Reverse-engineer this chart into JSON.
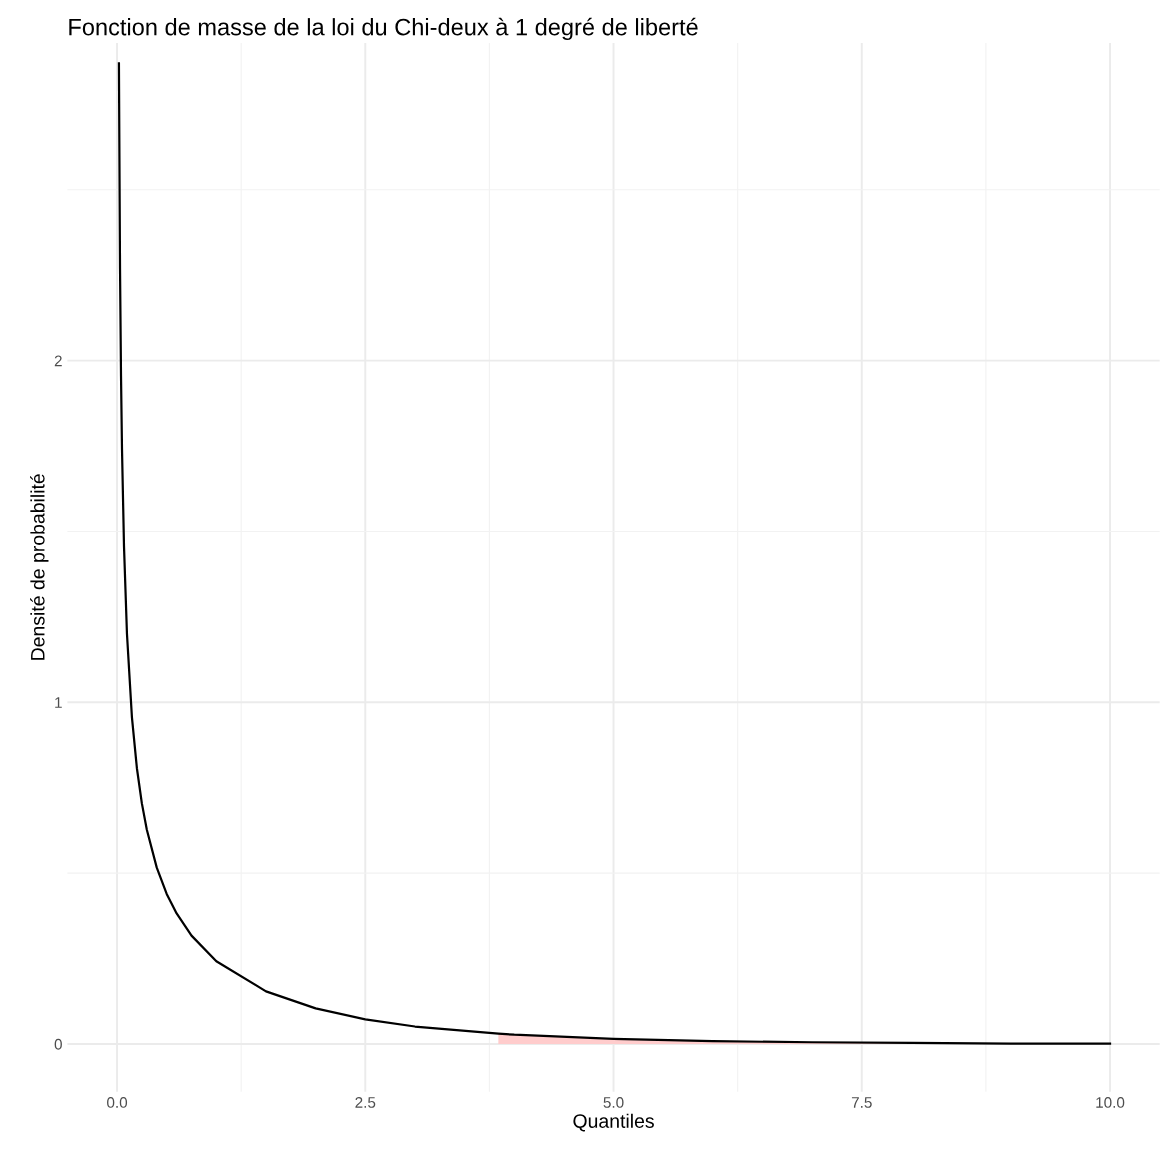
{
  "chart_data": {
    "type": "line",
    "title": "Fonction de masse de la loi du Chi-deux à 1 degré de liberté",
    "xlabel": "Quantiles",
    "ylabel": "Densité de probabilité",
    "xlim": [
      -0.5,
      10.5
    ],
    "xticks": [
      {
        "value": 0,
        "label": "0.0"
      },
      {
        "value": 2.5,
        "label": "2.5"
      },
      {
        "value": 5,
        "label": "5.0"
      },
      {
        "value": 7.5,
        "label": "7.5"
      },
      {
        "value": 10,
        "label": "10.0"
      }
    ],
    "ylim": [
      -0.14,
      2.93
    ],
    "yticks": [
      0,
      1,
      2
    ],
    "grid": true,
    "legend": false,
    "series": [
      {
        "type": "area",
        "color": "#ffcccc",
        "x": [
          3.84,
          4,
          5,
          6,
          7,
          8,
          9,
          10
        ],
        "values": [
          0.03,
          0.027,
          0.015,
          0.008,
          0.005,
          0.003,
          0.001,
          0.001
        ]
      },
      {
        "color": "#000000",
        "x": [
          0.019,
          0.03,
          0.04,
          0.05,
          0.07,
          0.1,
          0.15,
          0.2,
          0.25,
          0.3,
          0.4,
          0.5,
          0.6,
          0.75,
          1,
          1.5,
          2,
          2.5,
          3,
          3.84,
          4,
          5,
          6,
          7,
          8,
          9,
          10
        ],
        "values": [
          2.87,
          2.27,
          1.955,
          1.74,
          1.457,
          1.2,
          0.956,
          0.807,
          0.704,
          0.627,
          0.516,
          0.439,
          0.382,
          0.317,
          0.242,
          0.154,
          0.104,
          0.072,
          0.051,
          0.03,
          0.027,
          0.015,
          0.008,
          0.005,
          0.003,
          0.001,
          0.001
        ]
      }
    ]
  }
}
